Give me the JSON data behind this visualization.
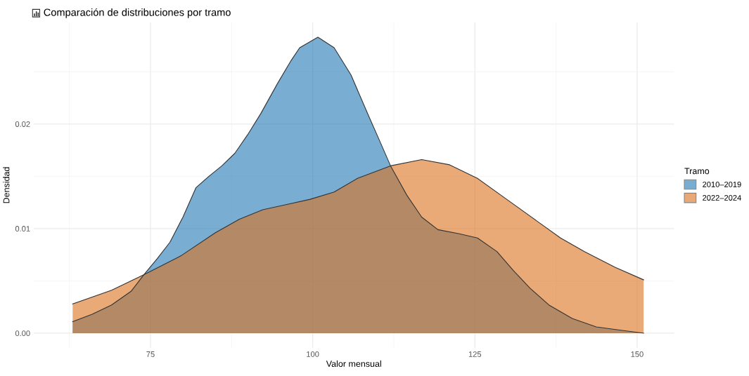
{
  "chart_data": {
    "type": "area",
    "title": "Comparación de distribuciones por tramo",
    "xlabel": "Valor mensual",
    "ylabel": "Densidad",
    "legend_title": "Tramo",
    "legend": "right",
    "grid": true,
    "xlim": [
      57,
      155.7
    ],
    "xticks": [
      75,
      100,
      125,
      150
    ],
    "ylim": [
      -0.0014,
      0.0297
    ],
    "yticks": [
      {
        "value": 0,
        "label": "0.00"
      },
      {
        "value": 0.01,
        "label": "0.01"
      },
      {
        "value": 0.02,
        "label": "0.02"
      }
    ],
    "series": [
      {
        "name": "2010–2019",
        "color": "#1f77b4",
        "x": [
          63,
          66,
          69,
          72,
          74,
          76,
          78,
          80,
          82,
          84,
          86,
          88,
          90,
          92,
          94.6,
          96.7,
          98,
          100.8,
          103.3,
          105.9,
          108.6,
          110.1,
          112,
          114.5,
          116.8,
          119.3,
          122.6,
          125.4,
          128.4,
          130.9,
          133.5,
          136.4,
          140,
          143.7,
          147.3,
          151
        ],
        "values": [
          0.0011,
          0.0018,
          0.0027,
          0.004,
          0.0056,
          0.0071,
          0.0087,
          0.0111,
          0.0139,
          0.015,
          0.016,
          0.0172,
          0.019,
          0.021,
          0.0239,
          0.0261,
          0.0273,
          0.0283,
          0.0273,
          0.0247,
          0.0208,
          0.0187,
          0.016,
          0.0132,
          0.0111,
          0.0099,
          0.0095,
          0.0091,
          0.0078,
          0.006,
          0.0043,
          0.0027,
          0.0014,
          0.0006,
          0.0003,
          0.0
        ]
      },
      {
        "name": "2022–2024",
        "color": "#dc711e",
        "x": [
          63,
          69,
          74,
          79.7,
          85,
          88.7,
          92.3,
          96,
          99.6,
          103.3,
          106.9,
          112,
          116.8,
          121.1,
          125.4,
          129.9,
          134.6,
          138.2,
          141.9,
          146.6,
          151
        ],
        "values": [
          0.0028,
          0.0041,
          0.0056,
          0.0074,
          0.0096,
          0.0109,
          0.0118,
          0.0123,
          0.0128,
          0.0135,
          0.0148,
          0.016,
          0.0166,
          0.0161,
          0.0148,
          0.0128,
          0.0107,
          0.0091,
          0.0078,
          0.0063,
          0.0051
        ]
      }
    ]
  }
}
